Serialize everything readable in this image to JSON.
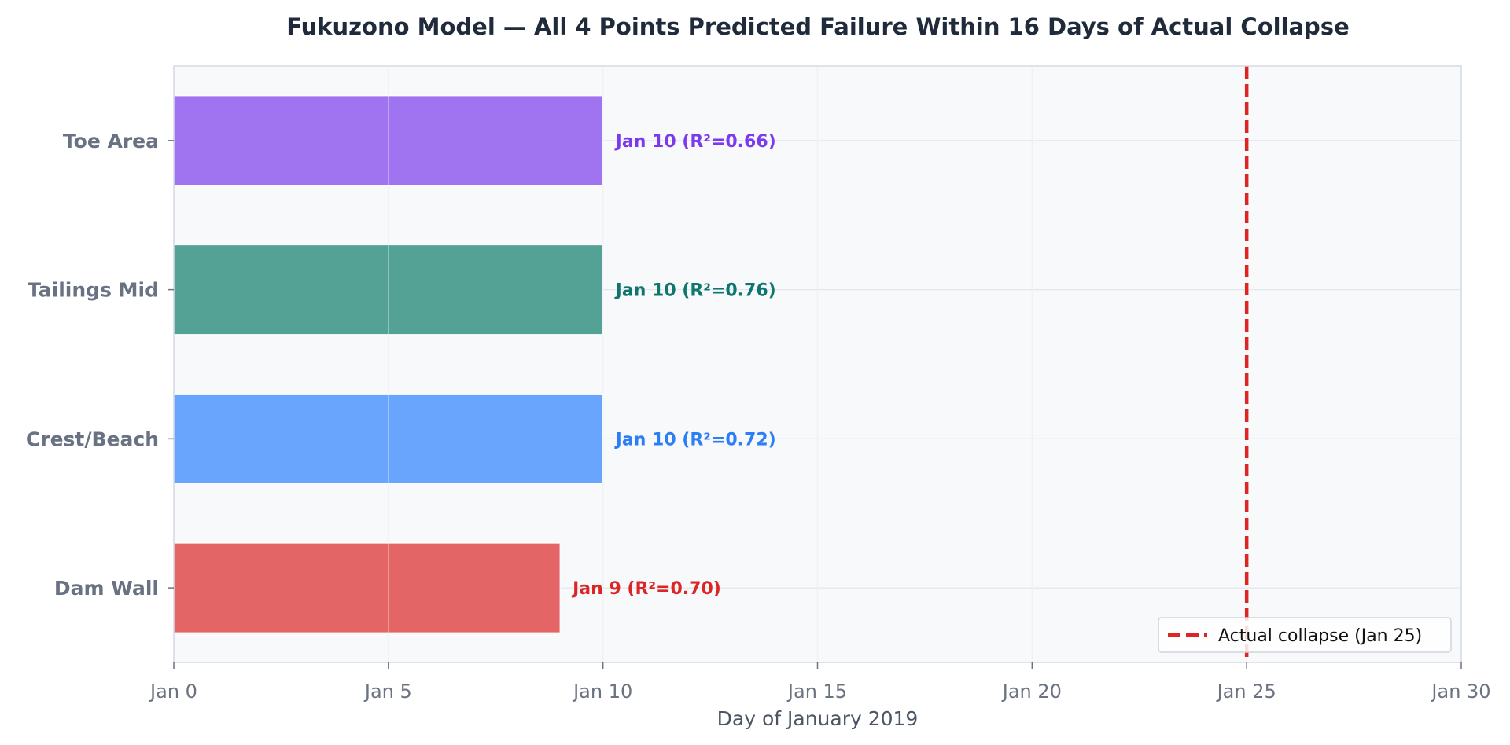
{
  "chart_data": {
    "type": "bar",
    "orientation": "horizontal",
    "title": "Fukuzono Model — All 4 Points Predicted Failure Within 16 Days of Actual Collapse",
    "xlabel": "Day of January 2019",
    "ylabel": "",
    "xlim": [
      0,
      30
    ],
    "x_ticks": [
      0,
      5,
      10,
      15,
      20,
      25,
      30
    ],
    "x_tick_labels": [
      "Jan 0",
      "Jan 5",
      "Jan 10",
      "Jan 15",
      "Jan 20",
      "Jan 25",
      "Jan 30"
    ],
    "grid": true,
    "categories": [
      "Toe Area",
      "Tailings Mid",
      "Crest/Beach",
      "Dam Wall"
    ],
    "values": [
      10,
      10,
      10,
      9
    ],
    "data_labels": [
      "Jan 10 (R²=0.66)",
      "Jan 10 (R²=0.76)",
      "Jan 10 (R²=0.72)",
      "Jan 9 (R²=0.70)"
    ],
    "bar_colors": [
      "#a074f0",
      "#53a295",
      "#69a4fd",
      "#e46566"
    ],
    "label_colors": [
      "#7c3aed",
      "#0f766e",
      "#2b7ef5",
      "#dc2626"
    ],
    "reference_line": {
      "x": 25,
      "label": "Actual collapse (Jan 25)",
      "color": "#dc2626",
      "style": "dashed"
    },
    "legend_position": "bottom-right",
    "plot_background": "#f8f9fb"
  }
}
